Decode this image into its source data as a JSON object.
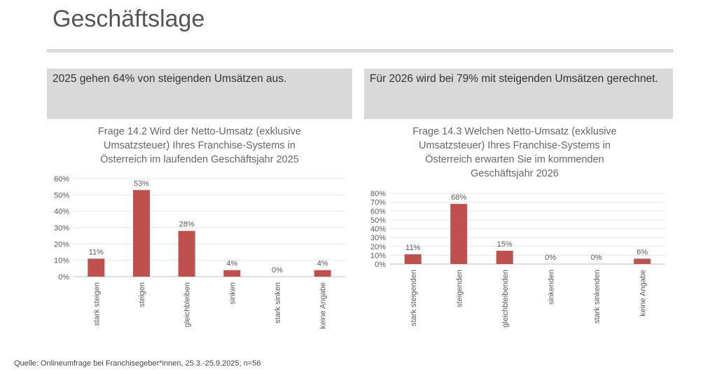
{
  "page": {
    "title": "Geschäftslage",
    "source": "Quelle: Onlineumfrage bei Franchisegeber*innen, 25.3.-25.9.2025; n=56"
  },
  "summaries": {
    "left": "2025 gehen 64% von steigenden Umsätzen aus.",
    "right": "Für 2026 wird bei 79% mit steigenden Umsätzen gerechnet."
  },
  "colors": {
    "bar": "#c0504d",
    "grid": "#e6e6e6",
    "axis": "#bfbfbf",
    "text": "#595959"
  },
  "chart_data": [
    {
      "type": "bar",
      "title": "Frage 14.2 Wird der Netto-Umsatz (exklusive Umsatzsteuer) Ihres Franchise-Systems in Österreich im laufenden Geschäftsjahr 2025",
      "title_lines": [
        "Frage 14.2 Wird der Netto-Umsatz (exklusive",
        "Umsatzsteuer) Ihres Franchise-Systems in",
        "Österreich im laufenden Geschäftsjahr 2025"
      ],
      "categories": [
        "stark steigen",
        "steigen",
        "gleichbleiben",
        "sinken",
        "stark sinken",
        "keine Angabe"
      ],
      "values": [
        11,
        53,
        28,
        4,
        0,
        4
      ],
      "data_labels": [
        "11%",
        "53%",
        "28%",
        "4%",
        "0%",
        "4%"
      ],
      "ylim": [
        0,
        60
      ],
      "yticks": [
        0,
        10,
        20,
        30,
        40,
        50,
        60
      ],
      "ytick_labels": [
        "0%",
        "10%",
        "20%",
        "30%",
        "40%",
        "50%",
        "60%"
      ],
      "xlabel": "",
      "ylabel": "",
      "grid": true
    },
    {
      "type": "bar",
      "title": "Frage 14.3 Welchen Netto-Umsatz (exklusive Umsatzsteuer) Ihres Franchise-Systems in Österreich erwarten Sie im kommenden Geschäftsjahr 2026",
      "title_lines": [
        "Frage 14.3 Welchen Netto-Umsatz (exklusive",
        "Umsatzsteuer) Ihres Franchise-Systems in",
        "Österreich erwarten Sie im kommenden",
        "Geschäftsjahr 2026"
      ],
      "categories": [
        "stark steigenden",
        "steigenden",
        "gleichbleibenden",
        "sinkenden",
        "stark sinkenden",
        "keine Angabe"
      ],
      "values": [
        11,
        68,
        15,
        0,
        0,
        6
      ],
      "data_labels": [
        "11%",
        "68%",
        "15%",
        "0%",
        "0%",
        "6%"
      ],
      "ylim": [
        0,
        80
      ],
      "yticks": [
        0,
        10,
        20,
        30,
        40,
        50,
        60,
        70,
        80
      ],
      "ytick_labels": [
        "0%",
        "10%",
        "20%",
        "30%",
        "40%",
        "50%",
        "60%",
        "70%",
        "80%"
      ],
      "xlabel": "",
      "ylabel": "",
      "grid": true
    }
  ]
}
